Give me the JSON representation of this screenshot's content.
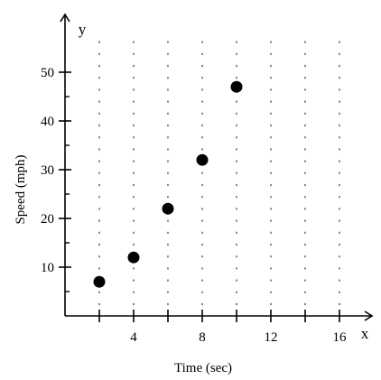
{
  "chart_data": {
    "type": "scatter",
    "title": "",
    "xlabel": "Time (sec)",
    "ylabel": "Speed (mph)",
    "x_axis_symbol": "x",
    "y_axis_symbol": "y",
    "xlim": [
      0,
      18
    ],
    "ylim": [
      0,
      58
    ],
    "x_ticks": [
      2,
      4,
      6,
      8,
      10,
      12,
      14,
      16
    ],
    "x_tick_labels": [
      "4",
      "8",
      "12",
      "16"
    ],
    "x_tick_label_values": [
      4,
      8,
      12,
      16
    ],
    "y_ticks": [
      10,
      20,
      30,
      40,
      50
    ],
    "y_tick_labels": [
      "10",
      "20",
      "30",
      "40",
      "50"
    ],
    "y_tick_label_values": [
      10,
      20,
      30,
      40,
      50
    ],
    "grid": "dotted vertical lines at each x tick",
    "point_color": "#000000",
    "points": [
      {
        "x": 2,
        "y": 7
      },
      {
        "x": 4,
        "y": 12
      },
      {
        "x": 6,
        "y": 22
      },
      {
        "x": 8,
        "y": 32
      },
      {
        "x": 10,
        "y": 47
      }
    ]
  }
}
